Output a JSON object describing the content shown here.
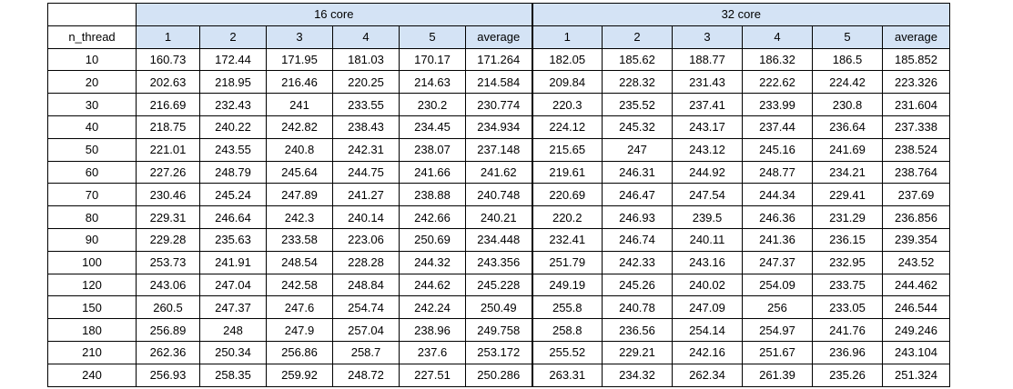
{
  "table": {
    "groups": [
      "16 core",
      "32 core"
    ],
    "row_header": "n_thread",
    "columns": [
      "1",
      "2",
      "3",
      "4",
      "5",
      "average",
      "1",
      "2",
      "3",
      "4",
      "5",
      "average"
    ],
    "rows": [
      {
        "thread": "10",
        "values": [
          "160.73",
          "172.44",
          "171.95",
          "181.03",
          "170.17",
          "171.264",
          "182.05",
          "185.62",
          "188.77",
          "186.32",
          "186.5",
          "185.852"
        ]
      },
      {
        "thread": "20",
        "values": [
          "202.63",
          "218.95",
          "216.46",
          "220.25",
          "214.63",
          "214.584",
          "209.84",
          "228.32",
          "231.43",
          "222.62",
          "224.42",
          "223.326"
        ]
      },
      {
        "thread": "30",
        "values": [
          "216.69",
          "232.43",
          "241",
          "233.55",
          "230.2",
          "230.774",
          "220.3",
          "235.52",
          "237.41",
          "233.99",
          "230.8",
          "231.604"
        ]
      },
      {
        "thread": "40",
        "values": [
          "218.75",
          "240.22",
          "242.82",
          "238.43",
          "234.45",
          "234.934",
          "224.12",
          "245.32",
          "243.17",
          "237.44",
          "236.64",
          "237.338"
        ]
      },
      {
        "thread": "50",
        "values": [
          "221.01",
          "243.55",
          "240.8",
          "242.31",
          "238.07",
          "237.148",
          "215.65",
          "247",
          "243.12",
          "245.16",
          "241.69",
          "238.524"
        ]
      },
      {
        "thread": "60",
        "values": [
          "227.26",
          "248.79",
          "245.64",
          "244.75",
          "241.66",
          "241.62",
          "219.61",
          "246.31",
          "244.92",
          "248.77",
          "234.21",
          "238.764"
        ]
      },
      {
        "thread": "70",
        "values": [
          "230.46",
          "245.24",
          "247.89",
          "241.27",
          "238.88",
          "240.748",
          "220.69",
          "246.47",
          "247.54",
          "244.34",
          "229.41",
          "237.69"
        ]
      },
      {
        "thread": "80",
        "values": [
          "229.31",
          "246.64",
          "242.3",
          "240.14",
          "242.66",
          "240.21",
          "220.2",
          "246.93",
          "239.5",
          "246.36",
          "231.29",
          "236.856"
        ]
      },
      {
        "thread": "90",
        "values": [
          "229.28",
          "235.63",
          "233.58",
          "223.06",
          "250.69",
          "234.448",
          "232.41",
          "246.74",
          "240.11",
          "241.36",
          "236.15",
          "239.354"
        ]
      },
      {
        "thread": "100",
        "values": [
          "253.73",
          "241.91",
          "248.54",
          "228.28",
          "244.32",
          "243.356",
          "251.79",
          "242.33",
          "243.16",
          "247.37",
          "232.95",
          "243.52"
        ]
      },
      {
        "thread": "120",
        "values": [
          "243.06",
          "247.04",
          "242.58",
          "248.84",
          "244.62",
          "245.228",
          "249.19",
          "245.26",
          "240.02",
          "254.09",
          "233.75",
          "244.462"
        ]
      },
      {
        "thread": "150",
        "values": [
          "260.5",
          "247.37",
          "247.6",
          "254.74",
          "242.24",
          "250.49",
          "255.8",
          "240.78",
          "247.09",
          "256",
          "233.05",
          "246.544"
        ]
      },
      {
        "thread": "180",
        "values": [
          "256.89",
          "248",
          "247.9",
          "257.04",
          "238.96",
          "249.758",
          "258.8",
          "236.56",
          "254.14",
          "254.97",
          "241.76",
          "249.246"
        ]
      },
      {
        "thread": "210",
        "values": [
          "262.36",
          "250.34",
          "256.86",
          "258.7",
          "237.6",
          "253.172",
          "255.52",
          "229.21",
          "242.16",
          "251.67",
          "236.96",
          "243.104"
        ]
      },
      {
        "thread": "240",
        "values": [
          "256.93",
          "258.35",
          "259.92",
          "248.72",
          "227.51",
          "250.286",
          "263.31",
          "234.32",
          "262.34",
          "261.39",
          "235.26",
          "251.324"
        ]
      }
    ]
  },
  "colors": {
    "header_bg": "#d4e3f5",
    "border": "#000000"
  }
}
